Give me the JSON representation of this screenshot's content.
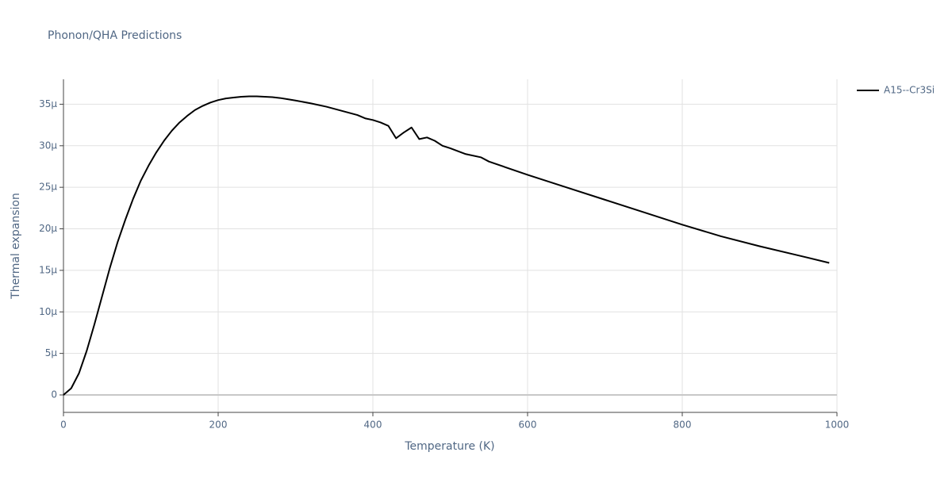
{
  "chart_data": {
    "type": "line",
    "title": "Phonon/QHA Predictions",
    "x_label": "Temperature (K)",
    "y_label": "Thermal expansion",
    "x": [
      0,
      10,
      20,
      30,
      40,
      50,
      60,
      70,
      80,
      90,
      100,
      110,
      120,
      130,
      140,
      150,
      160,
      170,
      180,
      190,
      200,
      210,
      220,
      230,
      240,
      250,
      260,
      270,
      280,
      290,
      300,
      320,
      340,
      360,
      380,
      390,
      400,
      410,
      420,
      430,
      440,
      450,
      460,
      470,
      480,
      490,
      500,
      520,
      540,
      550,
      600,
      650,
      700,
      750,
      800,
      850,
      900,
      950,
      990
    ],
    "series": [
      {
        "name": "A15--Cr3Si",
        "color": "#000000",
        "values": [
          0,
          8e-07,
          2.6e-06,
          5.3e-06,
          8.5e-06,
          1.19e-05,
          1.53e-05,
          1.84e-05,
          2.11e-05,
          2.36e-05,
          2.58e-05,
          2.76e-05,
          2.92e-05,
          3.06e-05,
          3.18e-05,
          3.28e-05,
          3.36e-05,
          3.43e-05,
          3.48e-05,
          3.52e-05,
          3.55e-05,
          3.57e-05,
          3.58e-05,
          3.59e-05,
          3.595e-05,
          3.595e-05,
          3.59e-05,
          3.585e-05,
          3.575e-05,
          3.56e-05,
          3.545e-05,
          3.51e-05,
          3.47e-05,
          3.42e-05,
          3.37e-05,
          3.33e-05,
          3.31e-05,
          3.28e-05,
          3.24e-05,
          3.09e-05,
          3.16e-05,
          3.22e-05,
          3.08e-05,
          3.1e-05,
          3.06e-05,
          3e-05,
          2.97e-05,
          2.9e-05,
          2.86e-05,
          2.81e-05,
          2.65e-05,
          2.5e-05,
          2.35e-05,
          2.2e-05,
          2.05e-05,
          1.91e-05,
          1.79e-05,
          1.68e-05,
          1.59e-05
        ]
      }
    ],
    "xlim": [
      0,
      1000
    ],
    "xticks": [
      0,
      200,
      400,
      600,
      800,
      1000
    ],
    "ylim": [
      -2.1e-06,
      3.8e-05
    ],
    "yticks": [
      0,
      {
        "value": 5e-06,
        "label": "5µ"
      },
      {
        "value": 1e-05,
        "label": "10µ"
      },
      {
        "value": 1.5e-05,
        "label": "15µ"
      },
      {
        "value": 2e-05,
        "label": "20µ"
      },
      {
        "value": 2.5e-05,
        "label": "25µ"
      },
      {
        "value": 3e-05,
        "label": "30µ"
      },
      {
        "value": 3.5e-05,
        "label": "35µ"
      }
    ],
    "grid": true,
    "legend": "right"
  }
}
